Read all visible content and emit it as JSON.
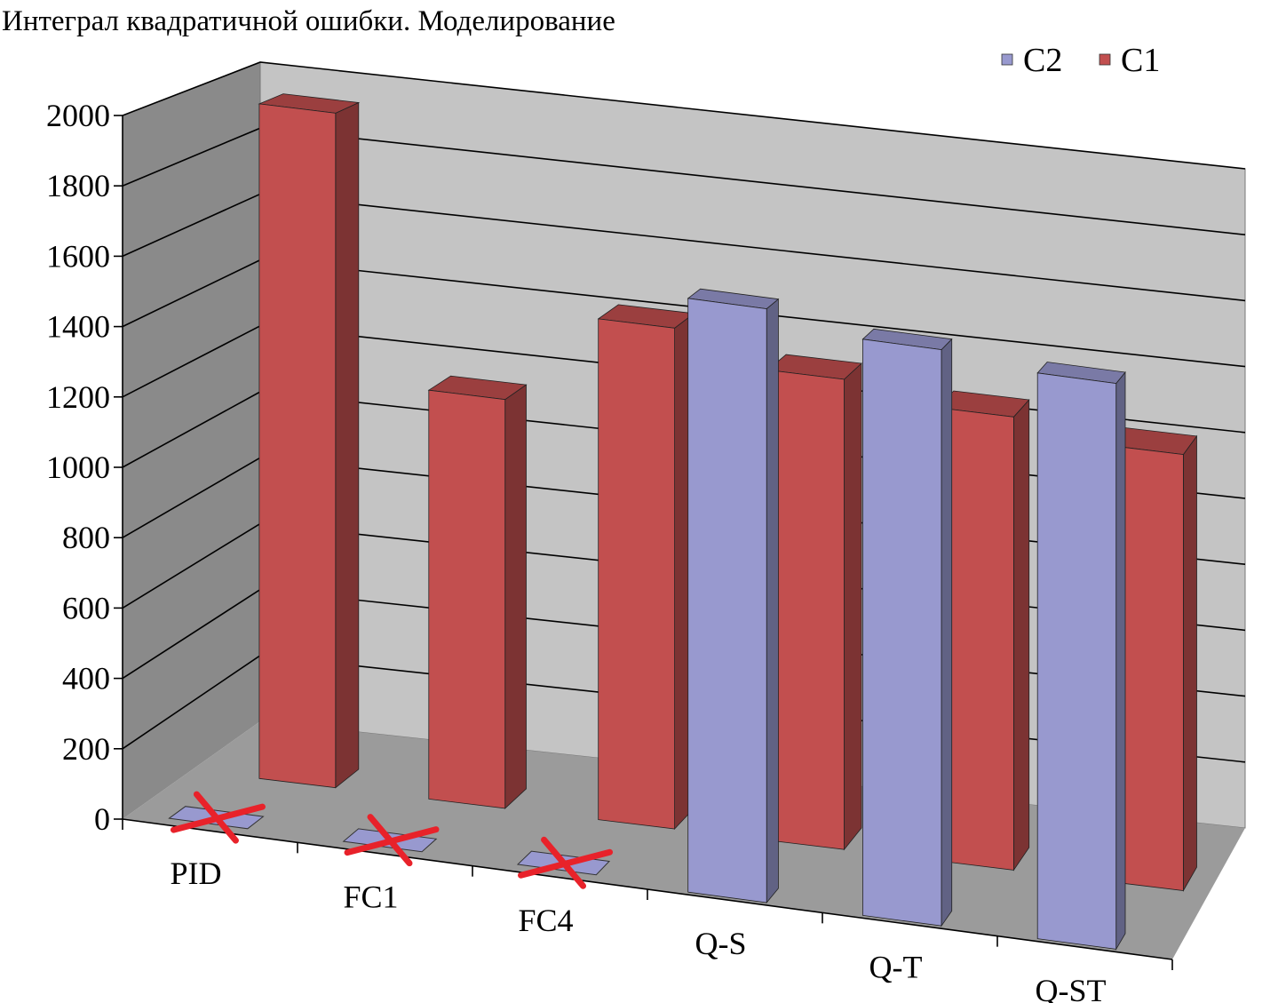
{
  "chart_data": {
    "type": "bar",
    "title": "Интеграл квадратичной ошибки. Моделирование",
    "xlabel": "",
    "ylabel": "",
    "categories": [
      "PID",
      "FC1",
      "FC4",
      "Q-S",
      "Q-T",
      "Q-ST"
    ],
    "series": [
      {
        "name": "C2",
        "color": "#9899cf",
        "values": [
          0,
          0,
          0,
          1690,
          1640,
          1610
        ],
        "crossed": [
          true,
          true,
          true,
          false,
          false,
          false
        ]
      },
      {
        "name": "C1",
        "color": "#c24f4f",
        "values": [
          1980,
          1200,
          1470,
          1380,
          1330,
          1280
        ]
      }
    ],
    "ylim": [
      0,
      2000
    ],
    "yticks": [
      0,
      200,
      400,
      600,
      800,
      1000,
      1200,
      1400,
      1600,
      1800,
      2000
    ],
    "grid": true,
    "legend_position": "top-right",
    "view": "3d-columns"
  }
}
